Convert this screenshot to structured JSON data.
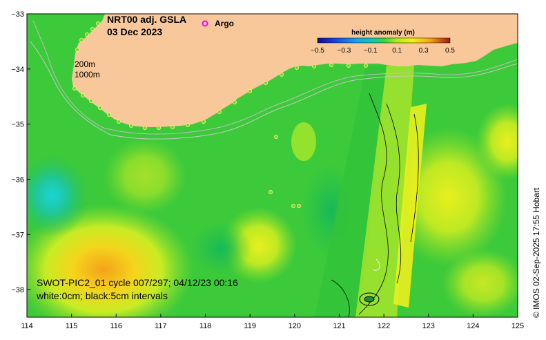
{
  "map": {
    "title_line1": "NRT00 adj. GSLA",
    "title_line2": "03 Dec 2023",
    "legend_argo": "Argo",
    "argo_color": "#ff00ff",
    "depth_label_1": "200m",
    "depth_label_2": "1000m",
    "caption_line1": "SWOT-PIC2_01 cycle 007/297; 04/12/23 00:16",
    "caption_line2": "white:0cm; black:5cm intervals",
    "credit": "© IMOS 02-Sep-2025 17:55 Hobart",
    "land_color": "#f8c89a",
    "ocean_base_color": "#39c93a"
  },
  "colorbar": {
    "title": "height anomaly (m)",
    "ticks": [
      "−0.5",
      "−0.3",
      "−0.1",
      "0.1",
      "0.3",
      "0.5"
    ],
    "min": -0.5,
    "max": 0.5
  },
  "axes": {
    "x_ticks": [
      "114",
      "115",
      "116",
      "117",
      "118",
      "119",
      "120",
      "121",
      "122",
      "123",
      "124",
      "125"
    ],
    "y_ticks": [
      "−33",
      "−34",
      "−35",
      "−36",
      "−37",
      "−38"
    ],
    "lon_range": [
      114,
      125
    ],
    "lat_range": [
      -38.5,
      -33
    ]
  }
}
